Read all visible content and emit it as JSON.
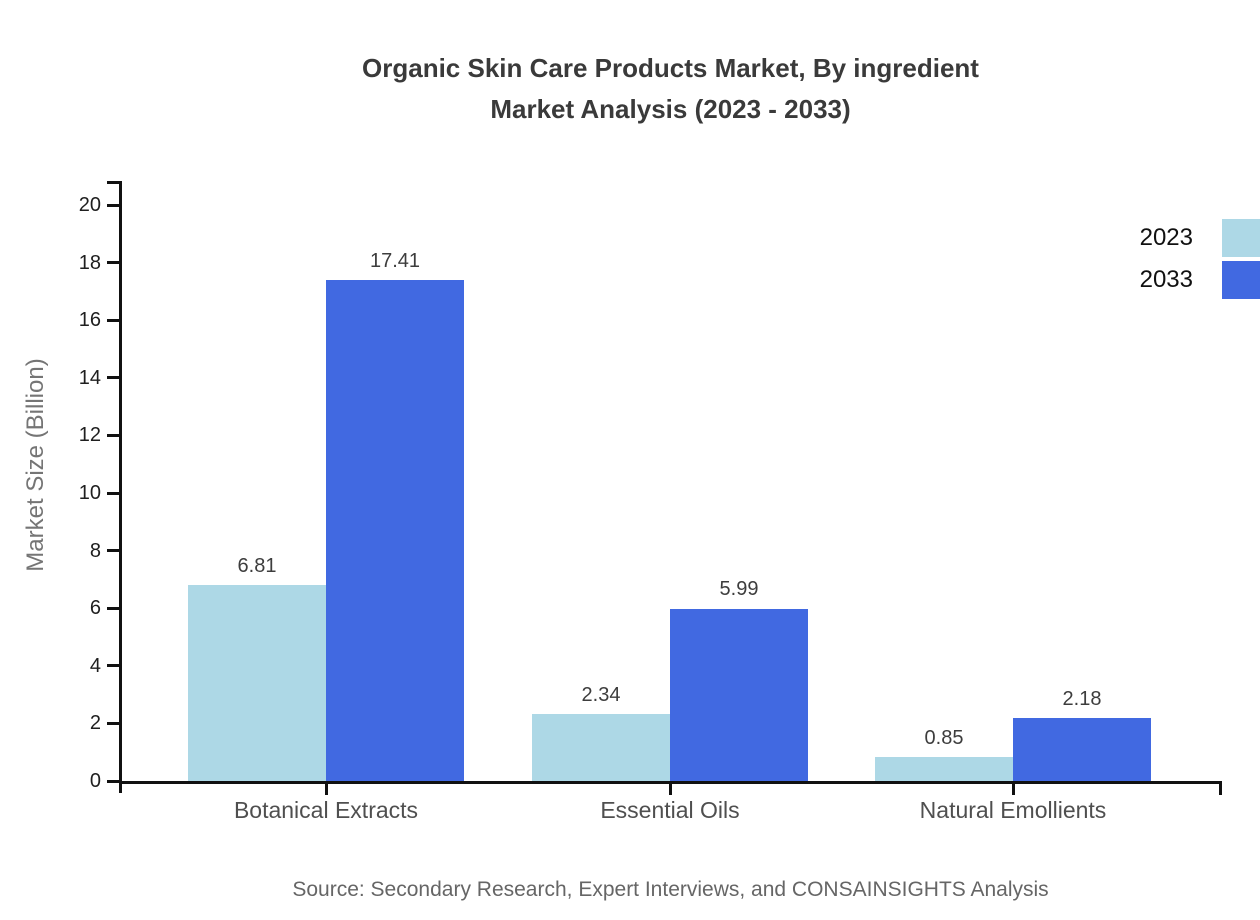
{
  "title": {
    "line1": "Organic Skin Care Products Market, By ingredient",
    "line2": "Market Analysis (2023 - 2033)"
  },
  "source": "Source: Secondary Research, Expert Interviews, and CONSAINSIGHTS Analysis",
  "y_axis": {
    "label": "Market Size (Billion)",
    "ticks": [
      0,
      2,
      4,
      6,
      8,
      10,
      12,
      14,
      16,
      18,
      20
    ]
  },
  "chart_data": {
    "type": "bar",
    "title": "Organic Skin Care Products Market, By ingredient Market Analysis (2023 - 2033)",
    "categories": [
      "Botanical Extracts",
      "Essential Oils",
      "Natural Emollients"
    ],
    "series": [
      {
        "name": "2023",
        "color": "#ADD8E6",
        "values": [
          6.81,
          2.34,
          0.85
        ]
      },
      {
        "name": "2033",
        "color": "#4169E1",
        "values": [
          17.41,
          5.99,
          2.18
        ]
      }
    ],
    "value_labels": [
      [
        "6.81",
        "2.34",
        "0.85"
      ],
      [
        "17.41",
        "5.99",
        "2.18"
      ]
    ],
    "xlabel": "",
    "ylabel": "Market Size (Billion)",
    "ylim": [
      0,
      20
    ],
    "y_tick_step": 2,
    "grid": false,
    "legend_position": "right-top",
    "axis_color": "#111111",
    "background": "#ffffff"
  }
}
